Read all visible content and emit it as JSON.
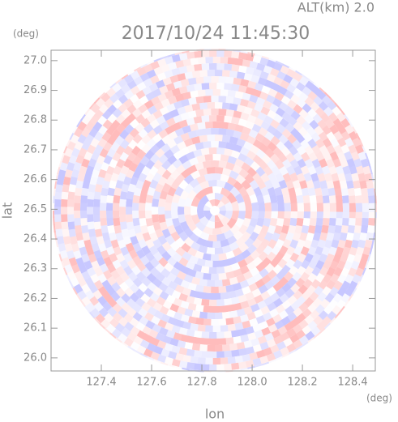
{
  "chart_data": {
    "type": "ppi",
    "title": "2017/10/24 11:45:30",
    "subtitle": "ALT(km) 2.0",
    "x_label": "lon",
    "y_label": "lat",
    "x_unit": "(deg)",
    "y_unit": "(deg)",
    "xlim": [
      127.2,
      128.49
    ],
    "ylim": [
      25.956,
      27.035
    ],
    "xticks": [
      {
        "value": 127.4,
        "label": "127.4"
      },
      {
        "value": 127.6,
        "label": "127.6"
      },
      {
        "value": 127.8,
        "label": "127.8"
      },
      {
        "value": 128.0,
        "label": "128.0"
      },
      {
        "value": 128.2,
        "label": "128.2"
      },
      {
        "value": 128.4,
        "label": "128.4"
      }
    ],
    "yticks": [
      {
        "value": 26.0,
        "label": "26.0"
      },
      {
        "value": 26.1,
        "label": "26.1"
      },
      {
        "value": 26.2,
        "label": "26.2"
      },
      {
        "value": 26.3,
        "label": "26.3"
      },
      {
        "value": 26.4,
        "label": "26.4"
      },
      {
        "value": 26.5,
        "label": "26.5"
      },
      {
        "value": 26.6,
        "label": "26.6"
      },
      {
        "value": 26.7,
        "label": "26.7"
      },
      {
        "value": 26.8,
        "label": "26.8"
      },
      {
        "value": 26.9,
        "label": "26.9"
      },
      {
        "value": 27.0,
        "label": "27.0"
      }
    ]
  }
}
